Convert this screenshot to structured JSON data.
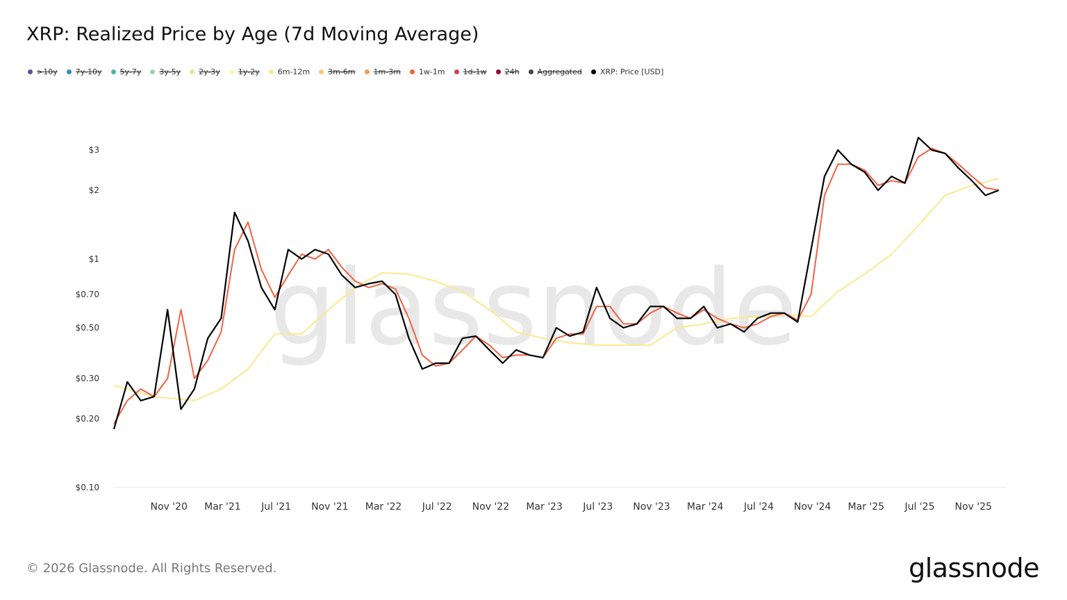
{
  "title": "XRP: Realized Price by Age (7d Moving Average)",
  "legend": [
    {
      "label": ">10y",
      "color": "#5e4fa2",
      "active": false
    },
    {
      "label": "7y-10y",
      "color": "#3288bd",
      "active": false
    },
    {
      "label": "5y-7y",
      "color": "#4fb3aa",
      "active": false
    },
    {
      "label": "3y-5y",
      "color": "#99d5a4",
      "active": false
    },
    {
      "label": "2y-3y",
      "color": "#d4ee9a",
      "active": false
    },
    {
      "label": "1y-2y",
      "color": "#fbf8a8",
      "active": false
    },
    {
      "label": "6m-12m",
      "color": "#fbe98f",
      "active": true
    },
    {
      "label": "3m-6m",
      "color": "#fbc873",
      "active": false
    },
    {
      "label": "1m-3m",
      "color": "#f89a5a",
      "active": false
    },
    {
      "label": "1w-1m",
      "color": "#ee6344",
      "active": true
    },
    {
      "label": "1d-1w",
      "color": "#d53e4f",
      "active": false
    },
    {
      "label": "24h",
      "color": "#9e0142",
      "active": false
    },
    {
      "label": "Aggregated",
      "color": "#444444",
      "active": false
    },
    {
      "label": "XRP: Price [USD]",
      "color": "#000000",
      "active": true
    }
  ],
  "chart_data": {
    "type": "line",
    "yscale": "log",
    "ylim": [
      0.1,
      4
    ],
    "yticks": [
      "$0.10",
      "$0.20",
      "$0.30",
      "$0.50",
      "$0.70",
      "$1",
      "$2",
      "$3"
    ],
    "ytick_values": [
      0.1,
      0.2,
      0.3,
      0.5,
      0.7,
      1,
      2,
      3
    ],
    "xticks": [
      "Nov '20",
      "Mar '21",
      "Jul '21",
      "Nov '21",
      "Mar '22",
      "Jul '22",
      "Nov '22",
      "Mar '23",
      "Jul '23",
      "Nov '23",
      "Mar '24",
      "Jul '24",
      "Nov '24",
      "Mar '25",
      "Jul '25",
      "Nov '25"
    ],
    "xtick_dates": [
      "2020-11",
      "2021-03",
      "2021-07",
      "2021-11",
      "2022-03",
      "2022-07",
      "2022-11",
      "2023-03",
      "2023-07",
      "2023-11",
      "2024-03",
      "2024-07",
      "2024-11",
      "2025-03",
      "2025-07",
      "2025-11"
    ],
    "series": [
      {
        "name": "6m-12m",
        "color": "#fbe98f",
        "x": [
          "2020-07",
          "2020-10",
          "2021-01",
          "2021-03",
          "2021-05",
          "2021-07",
          "2021-09",
          "2021-11",
          "2022-01",
          "2022-03",
          "2022-05",
          "2022-07",
          "2022-09",
          "2022-11",
          "2023-01",
          "2023-03",
          "2023-05",
          "2023-07",
          "2023-09",
          "2023-11",
          "2024-01",
          "2024-03",
          "2024-05",
          "2024-07",
          "2024-09",
          "2024-11",
          "2025-01",
          "2025-03",
          "2025-05",
          "2025-07",
          "2025-09",
          "2025-11",
          "2026-01"
        ],
        "values": [
          0.28,
          0.25,
          0.24,
          0.27,
          0.33,
          0.47,
          0.47,
          0.6,
          0.75,
          0.87,
          0.86,
          0.8,
          0.72,
          0.6,
          0.48,
          0.45,
          0.43,
          0.42,
          0.42,
          0.42,
          0.5,
          0.52,
          0.55,
          0.56,
          0.57,
          0.56,
          0.72,
          0.86,
          1.05,
          1.4,
          1.9,
          2.1,
          2.25
        ]
      },
      {
        "name": "1w-1m",
        "color": "#ee6344",
        "x": [
          "2020-07",
          "2020-08",
          "2020-09",
          "2020-10",
          "2020-11",
          "2020-12",
          "2021-01",
          "2021-02",
          "2021-03",
          "2021-04",
          "2021-05",
          "2021-06",
          "2021-07",
          "2021-08",
          "2021-09",
          "2021-10",
          "2021-11",
          "2021-12",
          "2022-01",
          "2022-02",
          "2022-03",
          "2022-04",
          "2022-05",
          "2022-06",
          "2022-07",
          "2022-08",
          "2022-09",
          "2022-10",
          "2022-11",
          "2022-12",
          "2023-01",
          "2023-02",
          "2023-03",
          "2023-04",
          "2023-05",
          "2023-06",
          "2023-07",
          "2023-08",
          "2023-09",
          "2023-10",
          "2023-11",
          "2023-12",
          "2024-01",
          "2024-02",
          "2024-03",
          "2024-04",
          "2024-05",
          "2024-06",
          "2024-07",
          "2024-08",
          "2024-09",
          "2024-10",
          "2024-11",
          "2024-12",
          "2025-01",
          "2025-02",
          "2025-03",
          "2025-04",
          "2025-05",
          "2025-06",
          "2025-07",
          "2025-08",
          "2025-09",
          "2025-10",
          "2025-11",
          "2025-12",
          "2026-01"
        ],
        "values": [
          0.19,
          0.24,
          0.27,
          0.25,
          0.3,
          0.6,
          0.3,
          0.36,
          0.48,
          1.1,
          1.45,
          0.9,
          0.68,
          0.85,
          1.05,
          1.0,
          1.1,
          0.92,
          0.8,
          0.75,
          0.78,
          0.74,
          0.55,
          0.38,
          0.34,
          0.35,
          0.4,
          0.46,
          0.42,
          0.37,
          0.38,
          0.38,
          0.37,
          0.45,
          0.47,
          0.47,
          0.62,
          0.62,
          0.52,
          0.52,
          0.58,
          0.62,
          0.58,
          0.55,
          0.6,
          0.55,
          0.52,
          0.5,
          0.52,
          0.56,
          0.58,
          0.54,
          0.7,
          1.9,
          2.6,
          2.6,
          2.45,
          2.1,
          2.2,
          2.15,
          2.8,
          3.05,
          2.9,
          2.6,
          2.3,
          2.05,
          2.0
        ]
      },
      {
        "name": "XRP: Price [USD]",
        "color": "#000000",
        "x": [
          "2020-07",
          "2020-08",
          "2020-09",
          "2020-10",
          "2020-11",
          "2020-12",
          "2021-01",
          "2021-02",
          "2021-03",
          "2021-04",
          "2021-05",
          "2021-06",
          "2021-07",
          "2021-08",
          "2021-09",
          "2021-10",
          "2021-11",
          "2021-12",
          "2022-01",
          "2022-02",
          "2022-03",
          "2022-04",
          "2022-05",
          "2022-06",
          "2022-07",
          "2022-08",
          "2022-09",
          "2022-10",
          "2022-11",
          "2022-12",
          "2023-01",
          "2023-02",
          "2023-03",
          "2023-04",
          "2023-05",
          "2023-06",
          "2023-07",
          "2023-08",
          "2023-09",
          "2023-10",
          "2023-11",
          "2023-12",
          "2024-01",
          "2024-02",
          "2024-03",
          "2024-04",
          "2024-05",
          "2024-06",
          "2024-07",
          "2024-08",
          "2024-09",
          "2024-10",
          "2024-11",
          "2024-12",
          "2025-01",
          "2025-02",
          "2025-03",
          "2025-04",
          "2025-05",
          "2025-06",
          "2025-07",
          "2025-08",
          "2025-09",
          "2025-10",
          "2025-11",
          "2025-12",
          "2026-01"
        ],
        "values": [
          0.18,
          0.29,
          0.24,
          0.25,
          0.6,
          0.22,
          0.27,
          0.45,
          0.55,
          1.6,
          1.2,
          0.75,
          0.6,
          1.1,
          1.0,
          1.1,
          1.05,
          0.85,
          0.75,
          0.78,
          0.8,
          0.7,
          0.45,
          0.33,
          0.35,
          0.35,
          0.45,
          0.46,
          0.4,
          0.35,
          0.4,
          0.38,
          0.37,
          0.5,
          0.46,
          0.48,
          0.75,
          0.55,
          0.5,
          0.52,
          0.62,
          0.62,
          0.55,
          0.55,
          0.62,
          0.5,
          0.52,
          0.48,
          0.55,
          0.58,
          0.58,
          0.53,
          1.1,
          2.3,
          3.0,
          2.6,
          2.4,
          2.0,
          2.3,
          2.15,
          3.4,
          3.0,
          2.9,
          2.5,
          2.2,
          1.9,
          2.0
        ]
      }
    ]
  },
  "watermark": "glassnode",
  "footer": "© 2026 Glassnode. All Rights Reserved.",
  "logo": "glassnode"
}
